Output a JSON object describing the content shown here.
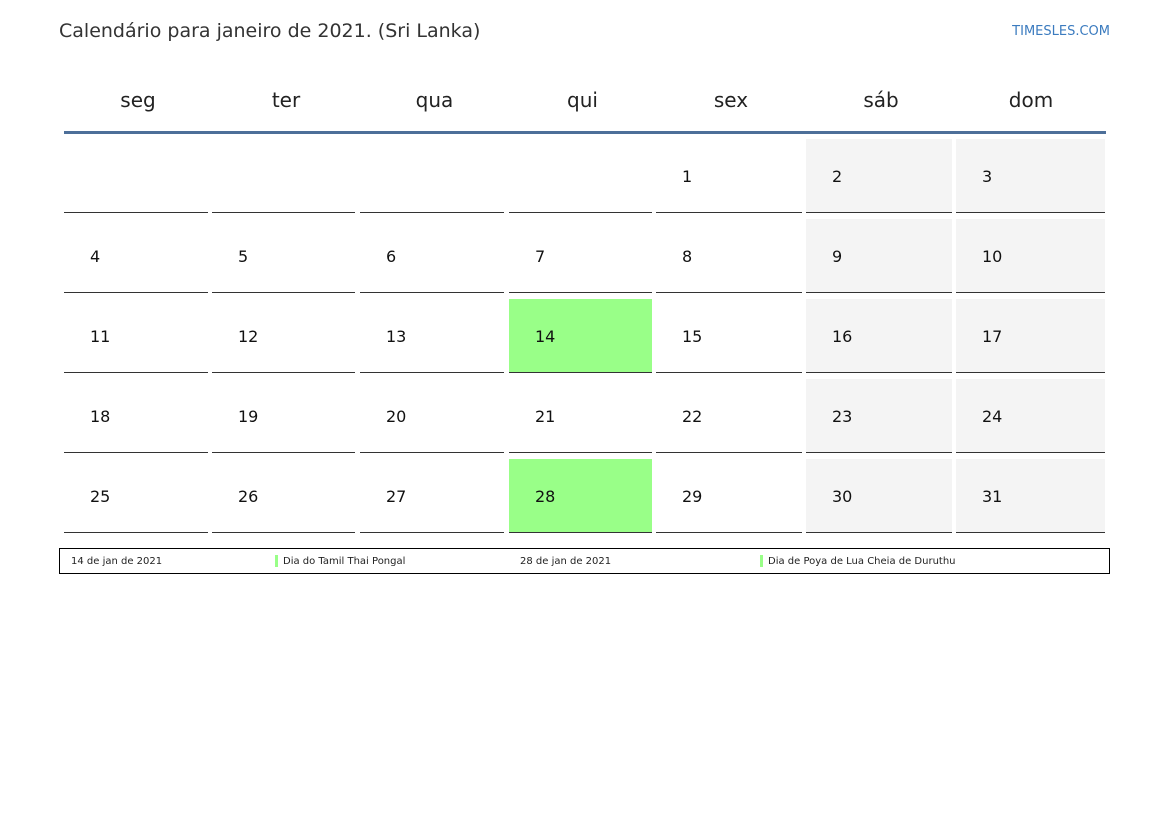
{
  "header": {
    "title": "Calendário para janeiro de 2021. (Sri Lanka)",
    "brand": "TIMESLES.COM"
  },
  "weekdays": [
    "seg",
    "ter",
    "qua",
    "qui",
    "sex",
    "sáb",
    "dom"
  ],
  "weeks": [
    [
      null,
      null,
      null,
      null,
      {
        "day": "1"
      },
      {
        "day": "2",
        "weekend": true
      },
      {
        "day": "3",
        "weekend": true
      }
    ],
    [
      {
        "day": "4"
      },
      {
        "day": "5"
      },
      {
        "day": "6"
      },
      {
        "day": "7"
      },
      {
        "day": "8"
      },
      {
        "day": "9",
        "weekend": true
      },
      {
        "day": "10",
        "weekend": true
      }
    ],
    [
      {
        "day": "11"
      },
      {
        "day": "12"
      },
      {
        "day": "13"
      },
      {
        "day": "14",
        "holiday": true
      },
      {
        "day": "15"
      },
      {
        "day": "16",
        "weekend": true
      },
      {
        "day": "17",
        "weekend": true
      }
    ],
    [
      {
        "day": "18"
      },
      {
        "day": "19"
      },
      {
        "day": "20"
      },
      {
        "day": "21"
      },
      {
        "day": "22"
      },
      {
        "day": "23",
        "weekend": true
      },
      {
        "day": "24",
        "weekend": true
      }
    ],
    [
      {
        "day": "25"
      },
      {
        "day": "26"
      },
      {
        "day": "27"
      },
      {
        "day": "28",
        "holiday": true
      },
      {
        "day": "29"
      },
      {
        "day": "30",
        "weekend": true
      },
      {
        "day": "31",
        "weekend": true
      }
    ]
  ],
  "legend": [
    {
      "date": "14 de jan de 2021",
      "name": "Dia do Tamil Thai Pongal"
    },
    {
      "date": "28 de jan de 2021",
      "name": "Dia de Poya de Lua Cheia de Duruthu"
    }
  ],
  "colors": {
    "holiday": "#99ff88",
    "weekend": "#f4f4f4",
    "header_rule": "#4d6f99",
    "brand": "#3b7bbf"
  }
}
